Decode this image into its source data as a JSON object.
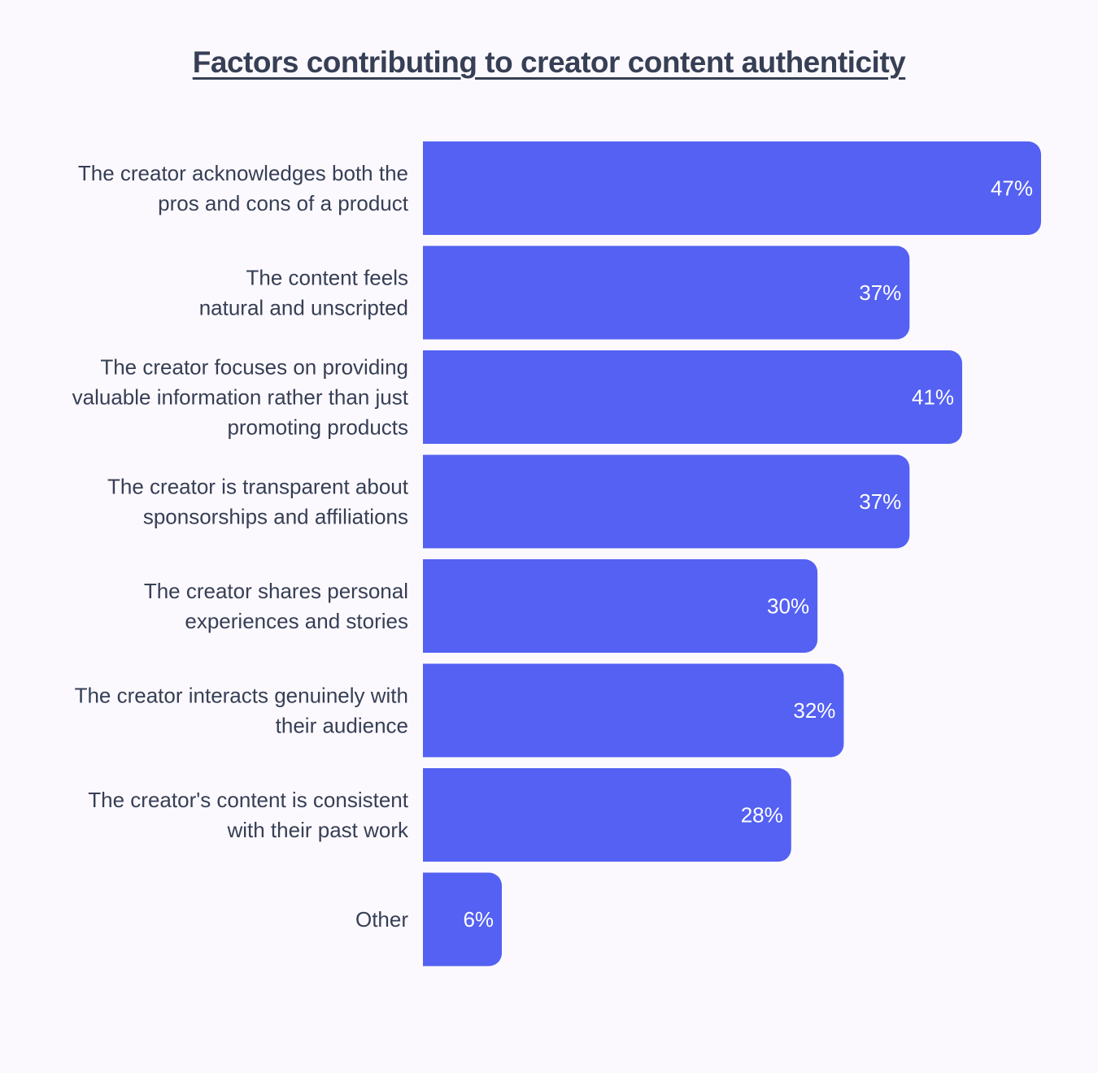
{
  "chart_data": {
    "type": "bar",
    "orientation": "horizontal",
    "title": "Factors contributing to creator content authenticity",
    "categories": [
      [
        "The creator acknowledges both the",
        "pros and cons of a product"
      ],
      [
        "The content feels",
        "natural and unscripted"
      ],
      [
        "The creator focuses on providing",
        "valuable information rather than just",
        "promoting products"
      ],
      [
        "The creator is transparent about",
        "sponsorships and affiliations"
      ],
      [
        "The creator shares personal",
        "experiences and stories"
      ],
      [
        "The creator interacts genuinely with",
        "their audience"
      ],
      [
        "The creator's content is consistent",
        "with their past work"
      ],
      [
        "Other"
      ]
    ],
    "values": [
      47,
      37,
      41,
      37,
      30,
      32,
      28,
      6
    ],
    "value_labels": [
      "47%",
      "37%",
      "41%",
      "37%",
      "30%",
      "32%",
      "28%",
      "6%"
    ],
    "unit": "%",
    "xlim": [
      0,
      47
    ],
    "grid": false,
    "bar_color": "#5461f2"
  }
}
